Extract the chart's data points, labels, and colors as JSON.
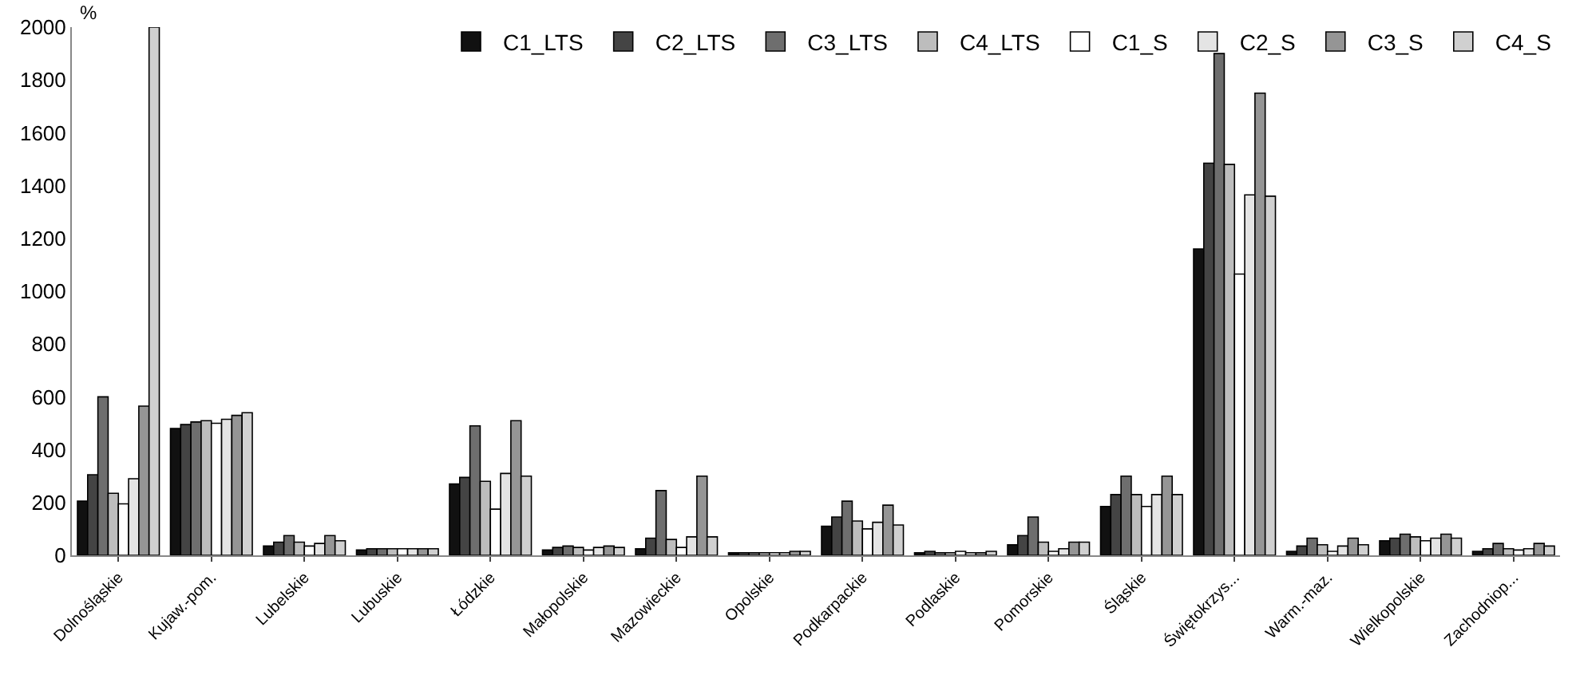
{
  "chart_data": {
    "type": "bar",
    "ylabel": "%",
    "categories": [
      "Dolnośląskie",
      "Kujaw.-pom.",
      "Lubelskie",
      "Lubuskie",
      "Łódzkie",
      "Małopolskie",
      "Mazowieckie",
      "Opolskie",
      "Podkarpackie",
      "Podlaskie",
      "Pomorskie",
      "Śląskie",
      "Świętokrzys...",
      "Warm.-maz.",
      "Wielkopolskie",
      "Zachodniop..."
    ],
    "series": [
      {
        "name": "C1_LTS",
        "color": "#111111",
        "values": [
          205,
          480,
          35,
          20,
          270,
          20,
          25,
          10,
          110,
          10,
          40,
          185,
          1160,
          15,
          55,
          15
        ]
      },
      {
        "name": "C2_LTS",
        "color": "#444444",
        "values": [
          305,
          495,
          50,
          25,
          295,
          30,
          65,
          10,
          145,
          15,
          75,
          230,
          1485,
          35,
          65,
          25
        ]
      },
      {
        "name": "C3_LTS",
        "color": "#6e6e6e",
        "values": [
          600,
          505,
          75,
          25,
          490,
          35,
          245,
          10,
          205,
          10,
          145,
          300,
          1900,
          65,
          80,
          45
        ]
      },
      {
        "name": "C4_LTS",
        "color": "#bdbdbd",
        "values": [
          235,
          510,
          50,
          25,
          280,
          30,
          60,
          10,
          130,
          10,
          50,
          230,
          1480,
          40,
          70,
          25
        ]
      },
      {
        "name": "C1_S",
        "color": "#ffffff",
        "values": [
          195,
          500,
          35,
          25,
          175,
          20,
          30,
          10,
          100,
          15,
          15,
          185,
          1065,
          15,
          55,
          20
        ]
      },
      {
        "name": "C2_S",
        "color": "#e4e4e4",
        "values": [
          290,
          515,
          45,
          25,
          310,
          30,
          70,
          10,
          125,
          10,
          25,
          230,
          1365,
          35,
          65,
          25
        ]
      },
      {
        "name": "C3_S",
        "color": "#959595",
        "values": [
          565,
          530,
          75,
          25,
          510,
          35,
          300,
          15,
          190,
          10,
          50,
          300,
          1750,
          65,
          80,
          45
        ]
      },
      {
        "name": "C4_S",
        "color": "#d0d0d0",
        "values": [
          2000,
          540,
          55,
          25,
          300,
          30,
          70,
          15,
          115,
          15,
          50,
          230,
          1360,
          40,
          65,
          35
        ]
      }
    ],
    "ylim": [
      0,
      2000
    ],
    "yticks": [
      0,
      200,
      400,
      600,
      800,
      1000,
      1200,
      1400,
      1600,
      1800,
      2000
    ],
    "grid": false,
    "legend": "top right"
  }
}
